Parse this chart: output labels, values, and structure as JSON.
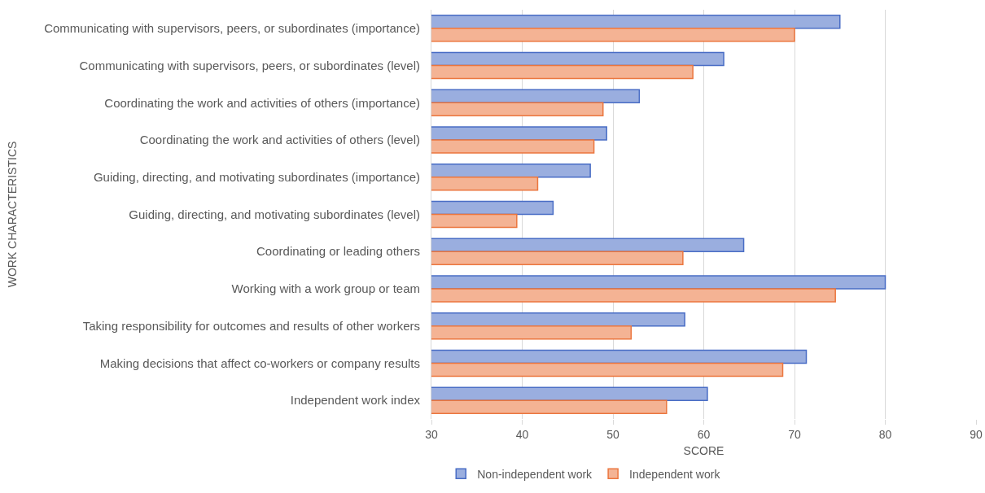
{
  "chart_data": {
    "type": "bar",
    "orientation": "horizontal",
    "xlabel": "SCORE",
    "ylabel": "WORK CHARACTERISTICS",
    "categories": [
      "Communicating with supervisors, peers, or subordinates (importance)",
      "Communicating with supervisors, peers, or subordinates (level)",
      "Coordinating the work and activities of others (importance)",
      "Coordinating the work and activities of others (level)",
      "Guiding, directing, and motivating subordinates (importance)",
      "Guiding, directing, and motivating subordinates (level)",
      "Coordinating or leading others",
      "Working with a work group or team",
      "Taking responsibility for outcomes and results of other workers",
      "Making decisions that affect co-workers or company results",
      "Independent work index"
    ],
    "series": [
      {
        "name": "Non-independent work",
        "color": "#9aaedf",
        "values": [
          75,
          62.2,
          52.9,
          49.3,
          47.5,
          43.4,
          64.4,
          80,
          57.9,
          71.3,
          60.4
        ]
      },
      {
        "name": "Independent work",
        "color": "#f4b394",
        "values": [
          70,
          58.8,
          48.9,
          47.9,
          41.7,
          39.4,
          57.7,
          74.5,
          52,
          68.7,
          55.9
        ]
      }
    ],
    "xlim": [
      30,
      90
    ],
    "xticks": [
      30,
      40,
      50,
      60,
      70,
      80,
      90
    ],
    "grid": "x",
    "legend": "bottom"
  }
}
